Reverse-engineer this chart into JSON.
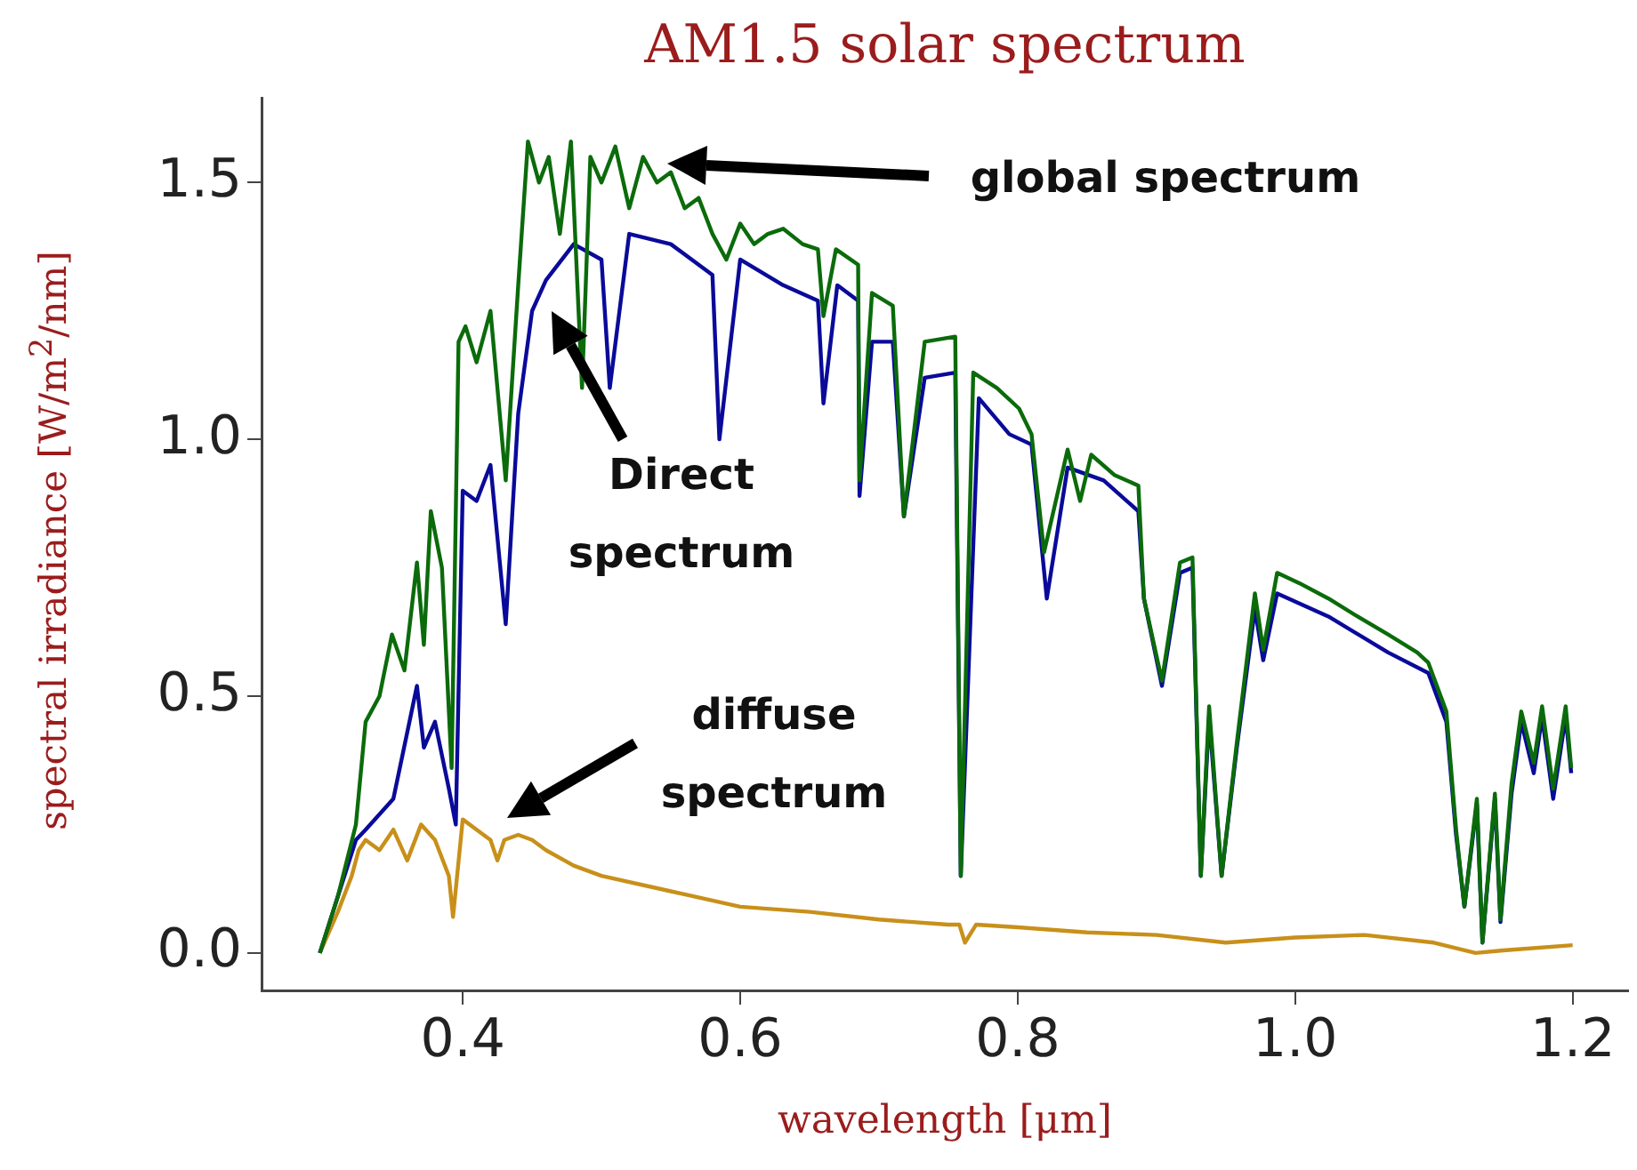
{
  "chart_data": {
    "type": "line",
    "title": "AM1.5 solar spectrum",
    "xlabel": "wavelength [μm]",
    "ylabel": "spectral irradiance [W/m$^{2}$/nm]",
    "xlim": [
      0.255,
      1.24
    ],
    "ylim": [
      -0.073,
      1.665
    ],
    "xticks": [
      {
        "value": 0.4,
        "label": "0.4"
      },
      {
        "value": 0.6,
        "label": "0.6"
      },
      {
        "value": 0.8,
        "label": "0.8"
      },
      {
        "value": 1.0,
        "label": "1.0"
      },
      {
        "value": 1.2,
        "label": "1.2"
      }
    ],
    "yticks": [
      {
        "value": 0,
        "label": "0.0"
      },
      {
        "value": 0.5,
        "label": "0.5"
      },
      {
        "value": 1.0,
        "label": "1.0"
      },
      {
        "value": 1.5,
        "label": "1.5"
      }
    ],
    "grid": false,
    "legend": false,
    "marker": "none",
    "line_style": "solid",
    "series": [
      {
        "color": "#0b6b0b",
        "x": [
          0.297,
          0.31,
          0.323,
          0.33,
          0.34,
          0.349,
          0.358,
          0.367,
          0.372,
          0.377,
          0.385,
          0.392,
          0.397,
          0.402,
          0.41,
          0.42,
          0.425,
          0.431,
          0.44,
          0.447,
          0.455,
          0.462,
          0.47,
          0.478,
          0.486,
          0.492,
          0.5,
          0.51,
          0.52,
          0.53,
          0.54,
          0.55,
          0.56,
          0.57,
          0.58,
          0.59,
          0.6,
          0.61,
          0.62,
          0.631,
          0.645,
          0.656,
          0.66,
          0.669,
          0.685,
          0.686,
          0.695,
          0.71,
          0.718,
          0.733,
          0.755,
          0.759,
          0.768,
          0.785,
          0.801,
          0.81,
          0.819,
          0.836,
          0.845,
          0.853,
          0.87,
          0.887,
          0.891,
          0.904,
          0.917,
          0.926,
          0.932,
          0.938,
          0.947,
          0.958,
          0.971,
          0.977,
          0.987,
          1.003,
          1.024,
          1.045,
          1.067,
          1.088,
          1.096,
          1.109,
          1.116,
          1.122,
          1.131,
          1.135,
          1.144,
          1.148,
          1.156,
          1.163,
          1.172,
          1.178,
          1.186,
          1.195,
          1.199
        ],
        "values": [
          0,
          0.11,
          0.25,
          0.45,
          0.5,
          0.62,
          0.55,
          0.76,
          0.6,
          0.86,
          0.75,
          0.36,
          1.19,
          1.22,
          1.15,
          1.25,
          1.1,
          0.92,
          1.3,
          1.58,
          1.5,
          1.55,
          1.4,
          1.58,
          1.1,
          1.55,
          1.5,
          1.57,
          1.45,
          1.55,
          1.5,
          1.52,
          1.45,
          1.47,
          1.4,
          1.35,
          1.42,
          1.38,
          1.4,
          1.41,
          1.38,
          1.37,
          1.24,
          1.37,
          1.34,
          0.92,
          1.285,
          1.26,
          0.85,
          1.19,
          1.2,
          0.15,
          1.13,
          1.1,
          1.06,
          1.01,
          0.78,
          0.98,
          0.88,
          0.97,
          0.93,
          0.91,
          0.69,
          0.53,
          0.76,
          0.77,
          0.15,
          0.48,
          0.15,
          0.41,
          0.7,
          0.59,
          0.74,
          0.72,
          0.69,
          0.655,
          0.62,
          0.585,
          0.565,
          0.47,
          0.24,
          0.09,
          0.3,
          0.02,
          0.31,
          0.065,
          0.33,
          0.47,
          0.37,
          0.48,
          0.32,
          0.48,
          0.36
        ]
      },
      {
        "color": "#0a0a9a",
        "x": [
          0.297,
          0.31,
          0.323,
          0.33,
          0.35,
          0.367,
          0.372,
          0.38,
          0.39,
          0.395,
          0.4,
          0.41,
          0.42,
          0.431,
          0.44,
          0.45,
          0.46,
          0.48,
          0.5,
          0.506,
          0.52,
          0.55,
          0.58,
          0.585,
          0.6,
          0.631,
          0.656,
          0.66,
          0.67,
          0.685,
          0.686,
          0.695,
          0.71,
          0.718,
          0.733,
          0.755,
          0.759,
          0.772,
          0.794,
          0.81,
          0.821,
          0.836,
          0.862,
          0.887,
          0.891,
          0.904,
          0.917,
          0.926,
          0.932,
          0.938,
          0.947,
          0.958,
          0.971,
          0.977,
          0.987,
          1.024,
          1.067,
          1.096,
          1.109,
          1.116,
          1.122,
          1.131,
          1.135,
          1.144,
          1.148,
          1.156,
          1.163,
          1.172,
          1.178,
          1.186,
          1.195,
          1.199
        ],
        "values": [
          0,
          0.11,
          0.22,
          0.24,
          0.3,
          0.52,
          0.4,
          0.45,
          0.32,
          0.25,
          0.9,
          0.88,
          0.95,
          0.64,
          1.05,
          1.25,
          1.31,
          1.38,
          1.35,
          1.1,
          1.4,
          1.38,
          1.32,
          1.0,
          1.35,
          1.3,
          1.27,
          1.07,
          1.3,
          1.27,
          0.89,
          1.19,
          1.19,
          0.85,
          1.12,
          1.13,
          0.15,
          1.08,
          1.01,
          0.99,
          0.69,
          0.945,
          0.92,
          0.86,
          0.69,
          0.52,
          0.74,
          0.75,
          0.15,
          0.46,
          0.15,
          0.4,
          0.67,
          0.57,
          0.7,
          0.655,
          0.585,
          0.545,
          0.45,
          0.23,
          0.09,
          0.29,
          0.02,
          0.3,
          0.06,
          0.31,
          0.45,
          0.35,
          0.46,
          0.3,
          0.46,
          0.35
        ]
      },
      {
        "color": "#c8901a",
        "x": [
          0.297,
          0.31,
          0.32,
          0.325,
          0.33,
          0.34,
          0.35,
          0.36,
          0.37,
          0.38,
          0.39,
          0.393,
          0.4,
          0.41,
          0.42,
          0.425,
          0.43,
          0.44,
          0.45,
          0.46,
          0.48,
          0.5,
          0.55,
          0.6,
          0.65,
          0.7,
          0.75,
          0.758,
          0.762,
          0.77,
          0.8,
          0.85,
          0.9,
          0.95,
          1.0,
          1.05,
          1.1,
          1.13,
          1.15,
          1.2
        ],
        "values": [
          0,
          0.08,
          0.15,
          0.2,
          0.22,
          0.2,
          0.24,
          0.18,
          0.25,
          0.22,
          0.15,
          0.07,
          0.26,
          0.24,
          0.22,
          0.18,
          0.22,
          0.23,
          0.22,
          0.2,
          0.17,
          0.15,
          0.12,
          0.09,
          0.08,
          0.065,
          0.055,
          0.055,
          0.02,
          0.055,
          0.05,
          0.04,
          0.035,
          0.02,
          0.03,
          0.035,
          0.02,
          0.0,
          0.005,
          0.015
        ]
      }
    ],
    "annotations": [
      "global spectrum",
      "Direct spectrum",
      "diffuse spectrum"
    ]
  }
}
